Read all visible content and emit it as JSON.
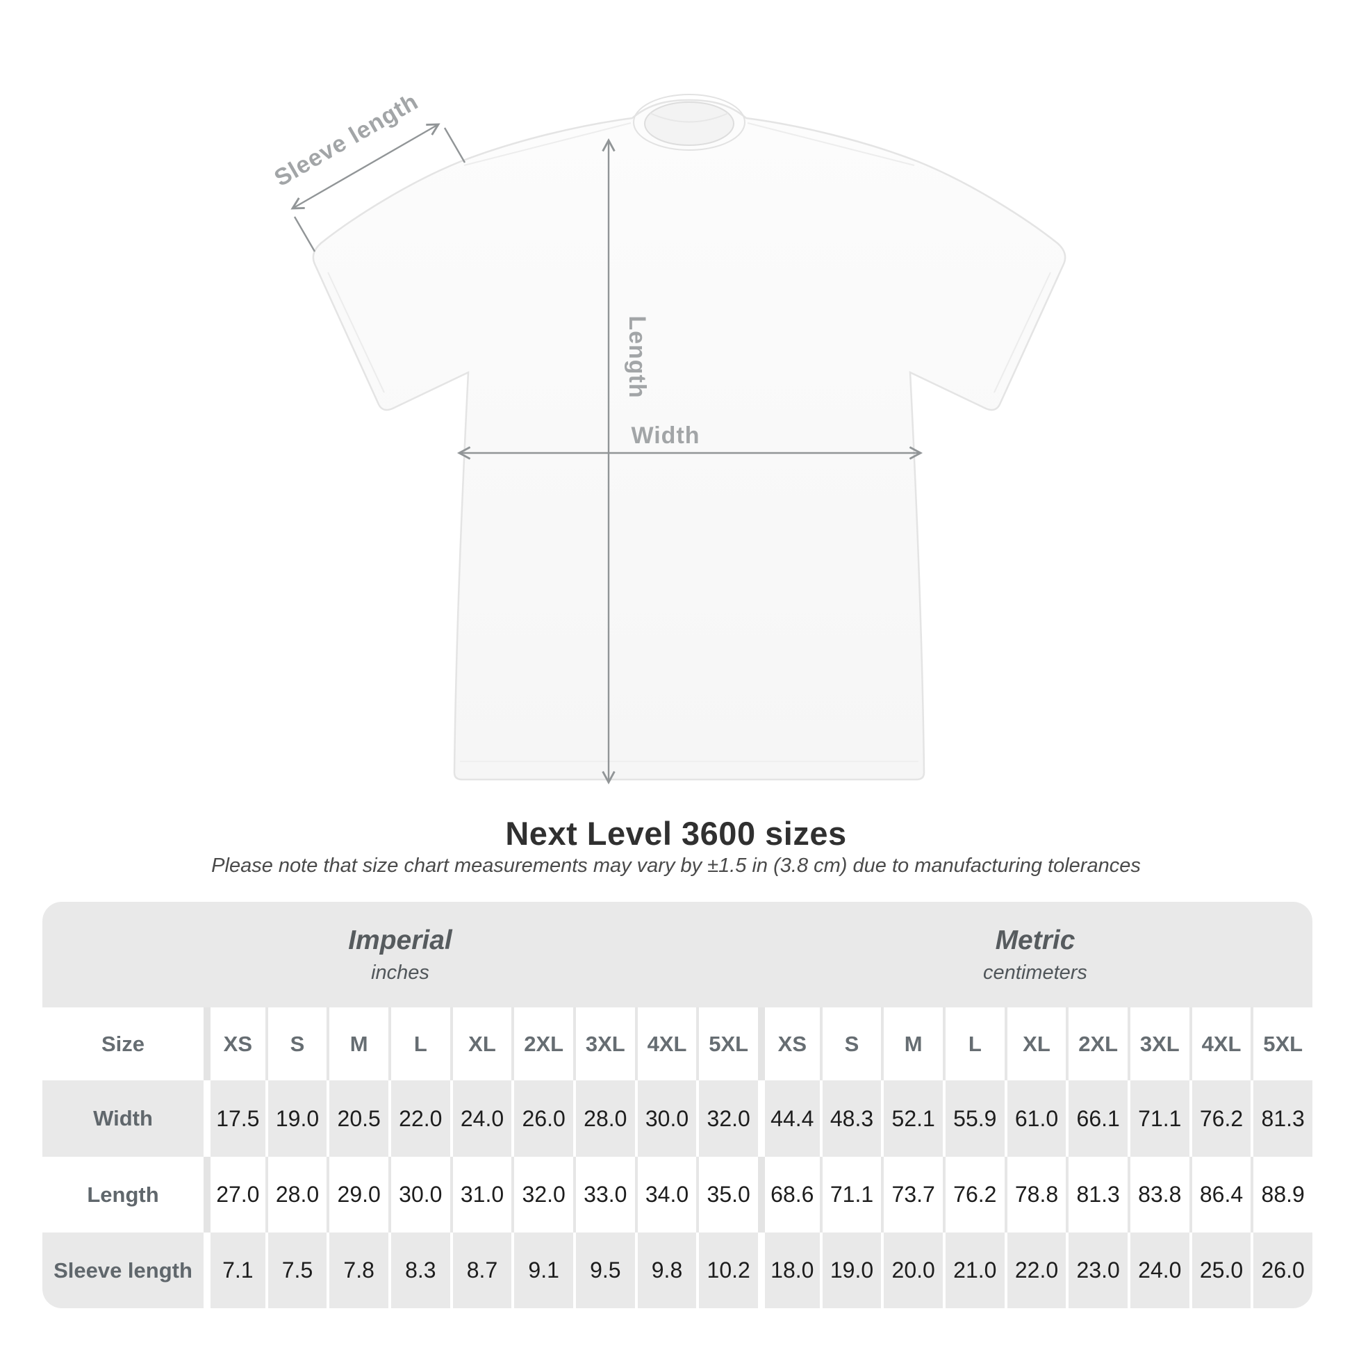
{
  "figure": {
    "labels": {
      "sleeve": "Sleeve length",
      "length": "Length",
      "width": "Width"
    }
  },
  "title": "Next Level 3600 sizes",
  "subtitle": "Please note that size chart measurements may vary by ±1.5 in (3.8 cm) due to manufacturing tolerances",
  "table": {
    "groups": [
      {
        "title": "Imperial",
        "subtitle": "inches"
      },
      {
        "title": "Metric",
        "subtitle": "centimeters"
      }
    ],
    "header": {
      "size_label": "Size",
      "sizes": [
        "XS",
        "S",
        "M",
        "L",
        "XL",
        "2XL",
        "3XL",
        "4XL",
        "5XL",
        "XS",
        "S",
        "M",
        "L",
        "XL",
        "2XL",
        "3XL",
        "4XL",
        "5XL"
      ]
    },
    "rows": [
      {
        "label": "Width",
        "values": [
          "17.5",
          "19.0",
          "20.5",
          "22.0",
          "24.0",
          "26.0",
          "28.0",
          "30.0",
          "32.0",
          "44.4",
          "48.3",
          "52.1",
          "55.9",
          "61.0",
          "66.1",
          "71.1",
          "76.2",
          "81.3"
        ]
      },
      {
        "label": "Length",
        "values": [
          "27.0",
          "28.0",
          "29.0",
          "30.0",
          "31.0",
          "32.0",
          "33.0",
          "34.0",
          "35.0",
          "68.6",
          "71.1",
          "73.7",
          "76.2",
          "78.8",
          "81.3",
          "83.8",
          "86.4",
          "88.9"
        ]
      },
      {
        "label": "Sleeve length",
        "values": [
          "7.1",
          "7.5",
          "7.8",
          "8.3",
          "8.7",
          "9.1",
          "9.5",
          "9.8",
          "10.2",
          "18.0",
          "19.0",
          "20.0",
          "21.0",
          "22.0",
          "23.0",
          "24.0",
          "25.0",
          "26.0"
        ]
      }
    ]
  },
  "colors": {
    "table_bg": "#e9e9e9",
    "dim_line": "#919597",
    "dim_label": "#a2a5a7",
    "title": "#303030",
    "value_text": "#1d1d1d",
    "header_text": "#666d72"
  }
}
